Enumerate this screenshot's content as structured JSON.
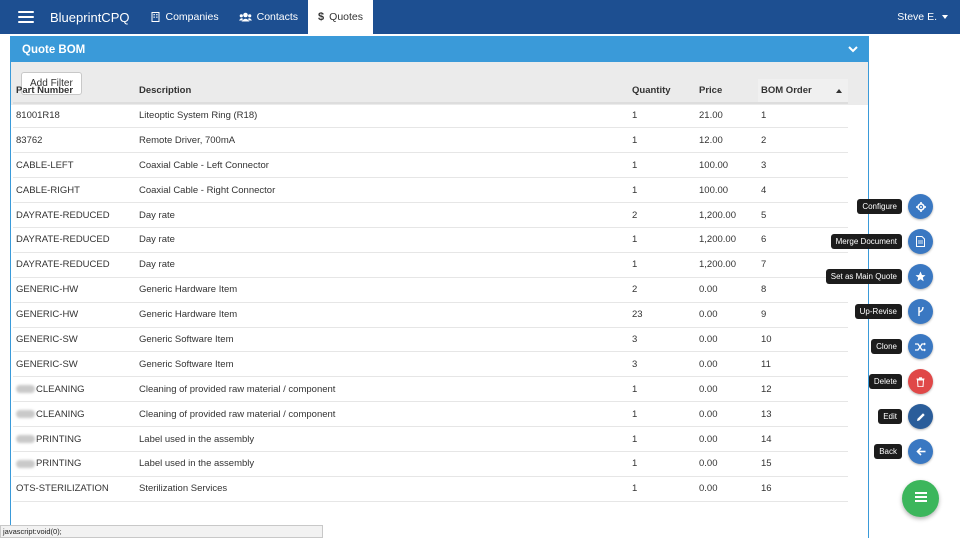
{
  "navbar": {
    "brand": "BlueprintCPQ",
    "items": [
      {
        "label": "Companies",
        "icon": "building-icon"
      },
      {
        "label": "Contacts",
        "icon": "users-icon"
      },
      {
        "label": "Quotes",
        "icon": "dollar-icon",
        "active": true
      }
    ],
    "user": "Steve E."
  },
  "panel": {
    "title": "Quote BOM",
    "add_filter_label": "Add Filter"
  },
  "table": {
    "headers": [
      "Part Number",
      "Description",
      "Quantity",
      "Price",
      "BOM Order"
    ],
    "rows": [
      {
        "part": "81001R18",
        "desc": "Liteoptic System Ring (R18)",
        "qty": "1",
        "price": "21.00",
        "bom": "1"
      },
      {
        "part": "83762",
        "desc": "Remote Driver, 700mA",
        "qty": "1",
        "price": "12.00",
        "bom": "2"
      },
      {
        "part": "CABLE-LEFT",
        "desc": "Coaxial Cable - Left Connector",
        "qty": "1",
        "price": "100.00",
        "bom": "3"
      },
      {
        "part": "CABLE-RIGHT",
        "desc": "Coaxial Cable - Right Connector",
        "qty": "1",
        "price": "100.00",
        "bom": "4"
      },
      {
        "part": "DAYRATE-REDUCED",
        "desc": "Day rate",
        "qty": "2",
        "price": "1,200.00",
        "bom": "5"
      },
      {
        "part": "DAYRATE-REDUCED",
        "desc": "Day rate",
        "qty": "1",
        "price": "1,200.00",
        "bom": "6"
      },
      {
        "part": "DAYRATE-REDUCED",
        "desc": "Day rate",
        "qty": "1",
        "price": "1,200.00",
        "bom": "7"
      },
      {
        "part": "GENERIC-HW",
        "desc": "Generic Hardware Item",
        "qty": "2",
        "price": "0.00",
        "bom": "8"
      },
      {
        "part": "GENERIC-HW",
        "desc": "Generic Hardware Item",
        "qty": "23",
        "price": "0.00",
        "bom": "9"
      },
      {
        "part": "GENERIC-SW",
        "desc": "Generic Software Item",
        "qty": "3",
        "price": "0.00",
        "bom": "10"
      },
      {
        "part": "GENERIC-SW",
        "desc": "Generic Software Item",
        "qty": "3",
        "price": "0.00",
        "bom": "11"
      },
      {
        "part": "CLEANING",
        "blurred_prefix": true,
        "desc": "Cleaning of provided raw material / component",
        "qty": "1",
        "price": "0.00",
        "bom": "12"
      },
      {
        "part": "CLEANING",
        "blurred_prefix": true,
        "desc": "Cleaning of provided raw material / component",
        "qty": "1",
        "price": "0.00",
        "bom": "13"
      },
      {
        "part": "PRINTING",
        "blurred_prefix": true,
        "desc": "Label used in the assembly",
        "qty": "1",
        "price": "0.00",
        "bom": "14"
      },
      {
        "part": "PRINTING",
        "blurred_prefix": true,
        "desc": "Label used in the assembly",
        "qty": "1",
        "price": "0.00",
        "bom": "15"
      },
      {
        "part": "OTS-STERILIZATION",
        "desc": "Sterilization Services",
        "qty": "1",
        "price": "0.00",
        "bom": "16"
      }
    ]
  },
  "actions": [
    {
      "label": "Configure",
      "icon": "gear-icon",
      "color": "#3a78c2"
    },
    {
      "label": "Merge Document",
      "icon": "document-icon",
      "color": "#3a78c2"
    },
    {
      "label": "Set as Main Quote",
      "icon": "star-icon",
      "color": "#3a78c2"
    },
    {
      "label": "Up-Revise",
      "icon": "branch-icon",
      "color": "#3a78c2"
    },
    {
      "label": "Clone",
      "icon": "shuffle-icon",
      "color": "#3a78c2"
    },
    {
      "label": "Delete",
      "icon": "trash-icon",
      "color": "#e04848"
    },
    {
      "label": "Edit",
      "icon": "pencil-icon",
      "color": "#2a5d9a"
    },
    {
      "label": "Back",
      "icon": "arrow-left-icon",
      "color": "#3a78c2"
    }
  ],
  "fab": {
    "icon": "menu-icon",
    "color": "#3cb65c"
  },
  "status_bar": "javascript:void(0);"
}
